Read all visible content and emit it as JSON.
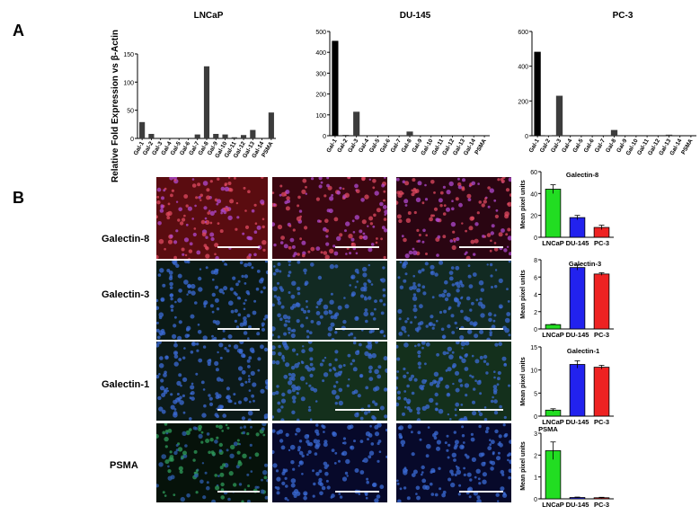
{
  "figure": {
    "panel_a": "A",
    "panel_b": "B",
    "y_axis_label_a": "Relative Fold Expression vs β-Actin",
    "row_labels": [
      "Galectin-8",
      "Galectin-3",
      "Galectin-1",
      "PSMA"
    ],
    "image_tint": {
      "Galectin-8": "#c42020",
      "Galectin-3": "#1f6a3a",
      "Galectin-1": "#1f6a3a",
      "PSMA": "#1a2f8c"
    },
    "bar_colors": {
      "LNCaP": "#22dd22",
      "DU-145": "#2222ee",
      "PC-3": "#ee2222"
    }
  },
  "chart_data": [
    {
      "type": "bar",
      "title": "LNCaP",
      "ylabel": "Relative Fold Expression vs β-Actin",
      "categories": [
        "Gal-1",
        "Gal-2",
        "Gal-3",
        "Gal-4",
        "Gal-5",
        "Gal-6",
        "Gal-7",
        "Gal-8",
        "Gal-9",
        "Gal-10",
        "Gal-11",
        "Gal-12",
        "Gal-13",
        "Gal-14",
        "PSMA"
      ],
      "values": [
        29,
        8,
        0,
        0,
        0,
        0,
        7,
        128,
        8,
        7,
        2,
        6,
        15,
        0,
        46
      ],
      "ylim": [
        0,
        150
      ],
      "yticks": [
        0,
        50,
        100,
        150
      ]
    },
    {
      "type": "bar",
      "title": "DU-145",
      "categories": [
        "Gal-1",
        "Gal-2",
        "Gal-3",
        "Gal-4",
        "Gal-5",
        "Gal-6",
        "Gal-7",
        "Gal-8",
        "Gal-9",
        "Gal-10",
        "Gal-11",
        "Gal-12",
        "Gal-13",
        "Gal-14",
        "PSMA"
      ],
      "values": [
        455,
        4,
        115,
        0,
        0,
        0,
        0,
        20,
        0,
        0,
        0,
        0,
        0,
        0,
        0
      ],
      "ylim": [
        0,
        500
      ],
      "yticks": [
        0,
        100,
        200,
        300,
        400,
        500
      ]
    },
    {
      "type": "bar",
      "title": "PC-3",
      "categories": [
        "Gal-1",
        "Gal-2",
        "Gal-3",
        "Gal-4",
        "Gal-5",
        "Gal-6",
        "Gal-7",
        "Gal-8",
        "Gal-9",
        "Gal-10",
        "Gal-11",
        "Gal-12",
        "Gal-13",
        "Gal-14",
        "PSMA"
      ],
      "values": [
        483,
        2,
        230,
        0,
        0,
        0,
        0,
        33,
        0,
        0,
        0,
        0,
        6,
        0,
        0
      ],
      "ylim": [
        0,
        600
      ],
      "yticks": [
        0,
        200,
        400,
        600
      ]
    },
    {
      "type": "bar",
      "title": "Galectin-8",
      "ylabel": "Mean pixel units",
      "categories": [
        "LNCaP",
        "DU-145",
        "PC-3"
      ],
      "values": [
        44,
        18,
        9
      ],
      "errors": [
        4,
        2,
        2
      ],
      "ylim": [
        0,
        60
      ],
      "yticks": [
        0,
        20,
        40,
        60
      ]
    },
    {
      "type": "bar",
      "title": "Galectin-3",
      "ylabel": "Mean pixel units",
      "categories": [
        "LNCaP",
        "DU-145",
        "PC-3"
      ],
      "values": [
        0.5,
        7.1,
        6.35
      ],
      "errors": [
        0.05,
        0.3,
        0.15
      ],
      "ylim": [
        0,
        8
      ],
      "yticks": [
        0,
        2,
        4,
        6,
        8
      ]
    },
    {
      "type": "bar",
      "title": "Galectin-1",
      "ylabel": "Mean pixel units",
      "categories": [
        "LNCaP",
        "DU-145",
        "PC-3"
      ],
      "values": [
        1.3,
        11.2,
        10.6
      ],
      "errors": [
        0.3,
        0.8,
        0.4
      ],
      "ylim": [
        0,
        15
      ],
      "yticks": [
        0,
        5,
        10,
        15
      ]
    },
    {
      "type": "bar",
      "title": "PSMA",
      "ylabel": "Mean pixel units",
      "categories": [
        "LNCaP",
        "DU-145",
        "PC-3"
      ],
      "values": [
        2.2,
        0.06,
        0.05
      ],
      "errors": [
        0.4,
        0.02,
        0.02
      ],
      "ylim": [
        0,
        3
      ],
      "yticks": [
        0,
        1,
        2,
        3
      ]
    }
  ]
}
